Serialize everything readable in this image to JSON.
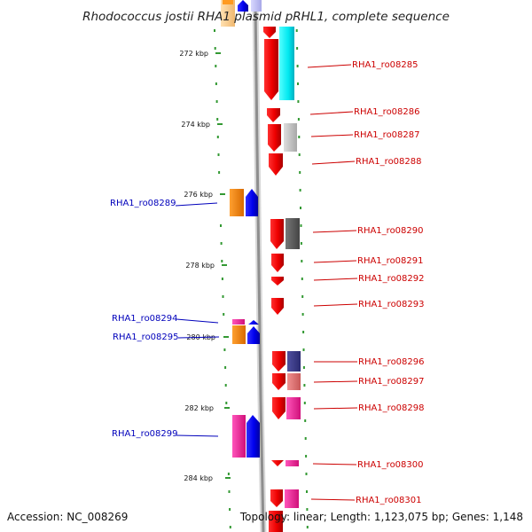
{
  "title": "Rhodococcus jostii RHA1 plasmid pRHL1, complete sequence",
  "accession": "Accession: NC_008269",
  "topology": "Topology: linear; Length: 1,123,075 bp; Genes: 1,148",
  "kbp_ticks": [
    "272 kbp",
    "274 kbp",
    "276 kbp",
    "278 kbp",
    "280 kbp",
    "282 kbp",
    "284 kbp"
  ],
  "colors": {
    "forward": "#ee1111",
    "reverse": "#1111ee",
    "forward_label": "#cc0000",
    "reverse_label": "#0000bb"
  },
  "genes": [
    {
      "label": "RHA1_ro08285",
      "strand": "forward"
    },
    {
      "label": "RHA1_ro08286",
      "strand": "forward"
    },
    {
      "label": "RHA1_ro08287",
      "strand": "forward"
    },
    {
      "label": "RHA1_ro08288",
      "strand": "forward"
    },
    {
      "label": "RHA1_ro08289",
      "strand": "reverse"
    },
    {
      "label": "RHA1_ro08290",
      "strand": "forward"
    },
    {
      "label": "RHA1_ro08291",
      "strand": "forward"
    },
    {
      "label": "RHA1_ro08292",
      "strand": "forward"
    },
    {
      "label": "RHA1_ro08293",
      "strand": "forward"
    },
    {
      "label": "RHA1_ro08294",
      "strand": "reverse"
    },
    {
      "label": "RHA1_ro08295",
      "strand": "reverse"
    },
    {
      "label": "RHA1_ro08296",
      "strand": "forward"
    },
    {
      "label": "RHA1_ro08297",
      "strand": "forward"
    },
    {
      "label": "RHA1_ro08298",
      "strand": "forward"
    },
    {
      "label": "RHA1_ro08299",
      "strand": "reverse"
    },
    {
      "label": "RHA1_ro08300",
      "strand": "forward"
    },
    {
      "label": "RHA1_ro08301",
      "strand": "forward"
    }
  ]
}
